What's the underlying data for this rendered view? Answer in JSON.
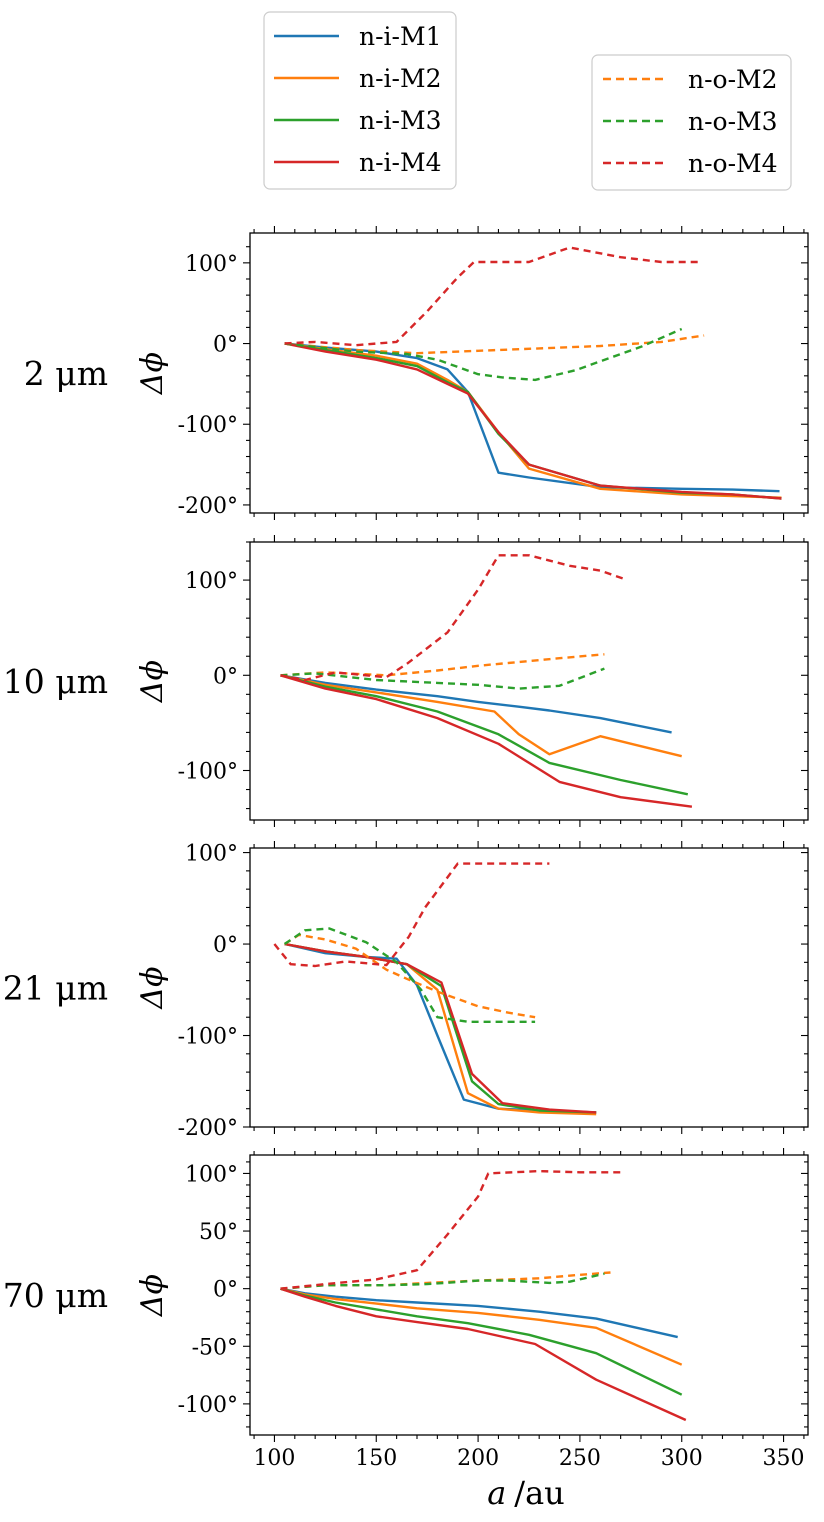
{
  "chart_data": {
    "type": "line",
    "xlabel_var": "a",
    "xlabel_unit": "/au",
    "x_ticks": [
      "100",
      "150",
      "200",
      "250",
      "300",
      "350"
    ],
    "xlim": [
      88,
      362
    ],
    "legend_left": [
      "n-i-M1",
      "n-i-M2",
      "n-i-M3",
      "n-i-M4"
    ],
    "legend_right": [
      "n-o-M2",
      "n-o-M3",
      "n-o-M4"
    ],
    "colors": {
      "M1": "#1f77b4",
      "M2": "#ff7f0e",
      "M3": "#2ca02c",
      "M4": "#d62728"
    },
    "ylabel": "Δϕ",
    "panels": [
      {
        "label": "2 μm",
        "ylim": [
          -210,
          137
        ],
        "yticks": [
          {
            "v": 100,
            "t": "100°"
          },
          {
            "v": 0,
            "t": "0°"
          },
          {
            "v": -100,
            "t": "-100°"
          },
          {
            "v": -200,
            "t": "-200°"
          }
        ],
        "series": [
          {
            "name": "n-i-M1",
            "c": "M1",
            "dash": false,
            "x": [
              105,
              125,
              150,
              170,
              185,
              195,
              210,
              225,
              260,
              300,
              325,
              348
            ],
            "y": [
              0,
              -5,
              -10,
              -18,
              -32,
              -60,
              -160,
              -166,
              -178,
              -180,
              -181,
              -183
            ]
          },
          {
            "name": "n-i-M2",
            "c": "M2",
            "dash": false,
            "x": [
              105,
              125,
              150,
              170,
              185,
              195,
              210,
              225,
              260,
              300,
              325,
              349
            ],
            "y": [
              0,
              -7,
              -15,
              -25,
              -45,
              -60,
              -110,
              -155,
              -180,
              -187,
              -189,
              -191
            ]
          },
          {
            "name": "n-i-M3",
            "c": "M3",
            "dash": false,
            "x": [
              105,
              125,
              150,
              170,
              185,
              195,
              210,
              225,
              260,
              300,
              325,
              349
            ],
            "y": [
              0,
              -8,
              -18,
              -28,
              -48,
              -60,
              -112,
              -150,
              -176,
              -185,
              -187,
              -192
            ]
          },
          {
            "name": "n-i-M4",
            "c": "M4",
            "dash": false,
            "x": [
              105,
              125,
              150,
              170,
              185,
              195,
              210,
              225,
              260,
              300,
              325,
              349
            ],
            "y": [
              0,
              -10,
              -20,
              -32,
              -50,
              -62,
              -110,
              -150,
              -176,
              -184,
              -187,
              -192
            ]
          },
          {
            "name": "n-o-M2",
            "c": "M2",
            "dash": true,
            "x": [
              105,
              140,
              170,
              200,
              230,
              260,
              290,
              311
            ],
            "y": [
              0,
              -8,
              -12,
              -9,
              -6,
              -3,
              2,
              10
            ]
          },
          {
            "name": "n-o-M3",
            "c": "M3",
            "dash": true,
            "x": [
              105,
              140,
              165,
              180,
              200,
              212,
              228,
              248,
              260,
              280,
              300
            ],
            "y": [
              0,
              -10,
              -13,
              -20,
              -38,
              -42,
              -45,
              -33,
              -22,
              -4,
              18
            ]
          },
          {
            "name": "n-o-M4",
            "c": "M4",
            "dash": true,
            "x": [
              105,
              120,
              140,
              160,
              175,
              190,
              198,
              210,
              225,
              245,
              270,
              290,
              310
            ],
            "y": [
              0,
              2,
              -2,
              2,
              40,
              82,
              101,
              101,
              101,
              119,
              107,
              101,
              101
            ]
          }
        ]
      },
      {
        "label": "10 μm",
        "ylim": [
          -152,
          140
        ],
        "yticks": [
          {
            "v": 100,
            "t": "100°"
          },
          {
            "v": 0,
            "t": "0°"
          },
          {
            "v": -100,
            "t": "-100°"
          }
        ],
        "series": [
          {
            "name": "n-i-M1",
            "c": "M1",
            "dash": false,
            "x": [
              103,
              125,
              150,
              180,
              200,
              220,
              235,
              260,
              295
            ],
            "y": [
              0,
              -8,
              -15,
              -22,
              -28,
              -33,
              -37,
              -45,
              -60
            ]
          },
          {
            "name": "n-i-M2",
            "c": "M2",
            "dash": false,
            "x": [
              103,
              125,
              150,
              180,
              208,
              220,
              235,
              260,
              300
            ],
            "y": [
              0,
              -10,
              -18,
              -28,
              -38,
              -62,
              -83,
              -64,
              -85
            ]
          },
          {
            "name": "n-i-M3",
            "c": "M3",
            "dash": false,
            "x": [
              103,
              125,
              150,
              180,
              210,
              235,
              270,
              303
            ],
            "y": [
              0,
              -12,
              -22,
              -38,
              -62,
              -92,
              -110,
              -125
            ]
          },
          {
            "name": "n-i-M4",
            "c": "M4",
            "dash": false,
            "x": [
              103,
              125,
              150,
              180,
              210,
              240,
              270,
              305
            ],
            "y": [
              0,
              -14,
              -25,
              -45,
              -72,
              -112,
              -128,
              -138
            ]
          },
          {
            "name": "n-o-M2",
            "c": "M2",
            "dash": true,
            "x": [
              103,
              125,
              155,
              180,
              200,
              220,
              240,
              262
            ],
            "y": [
              0,
              3,
              0,
              5,
              10,
              14,
              18,
              22
            ]
          },
          {
            "name": "n-o-M3",
            "c": "M3",
            "dash": true,
            "x": [
              103,
              120,
              150,
              180,
              200,
              220,
              240,
              262
            ],
            "y": [
              0,
              2,
              -5,
              -8,
              -10,
              -14,
              -11,
              7
            ]
          },
          {
            "name": "n-o-M4",
            "c": "M4",
            "dash": true,
            "x": [
              103,
              115,
              130,
              155,
              165,
              185,
              200,
              210,
              225,
              245,
              260,
              272
            ],
            "y": [
              0,
              -5,
              3,
              -2,
              12,
              45,
              90,
              126,
              126,
              115,
              110,
              101
            ]
          }
        ]
      },
      {
        "label": "21 μm",
        "ylim": [
          -200,
          105
        ],
        "yticks": [
          {
            "v": 100,
            "t": "100°"
          },
          {
            "v": 0,
            "t": "0°"
          },
          {
            "v": -100,
            "t": "-100°"
          },
          {
            "v": -200,
            "t": "-200°"
          }
        ],
        "series": [
          {
            "name": "n-i-M1",
            "c": "M1",
            "dash": false,
            "x": [
              105,
              125,
              145,
              160,
              170,
              180,
              193,
              210,
              230,
              258
            ],
            "y": [
              0,
              -10,
              -14,
              -16,
              -45,
              -100,
              -170,
              -180,
              -182,
              -184
            ]
          },
          {
            "name": "n-i-M2",
            "c": "M2",
            "dash": false,
            "x": [
              105,
              125,
              145,
              165,
              180,
              195,
              210,
              230,
              258
            ],
            "y": [
              0,
              -8,
              -14,
              -22,
              -50,
              -163,
              -180,
              -184,
              -186
            ]
          },
          {
            "name": "n-i-M3",
            "c": "M3",
            "dash": false,
            "x": [
              105,
              125,
              145,
              165,
              182,
              197,
              210,
              230,
              258
            ],
            "y": [
              0,
              -8,
              -14,
              -22,
              -46,
              -150,
              -175,
              -182,
              -184
            ]
          },
          {
            "name": "n-i-M4",
            "c": "M4",
            "dash": false,
            "x": [
              105,
              125,
              145,
              165,
              182,
              197,
              212,
              235,
              258
            ],
            "y": [
              0,
              -8,
              -14,
              -22,
              -42,
              -142,
              -174,
              -181,
              -184
            ]
          },
          {
            "name": "n-o-M2",
            "c": "M2",
            "dash": true,
            "x": [
              105,
              112,
              125,
              140,
              155,
              165,
              180,
              200,
              215,
              228
            ],
            "y": [
              0,
              10,
              5,
              -5,
              -28,
              -38,
              -52,
              -68,
              -75,
              -80
            ]
          },
          {
            "name": "n-o-M3",
            "c": "M3",
            "dash": true,
            "x": [
              105,
              115,
              127,
              145,
              160,
              172,
              180,
              195,
              210,
              228
            ],
            "y": [
              0,
              15,
              17,
              2,
              -20,
              -50,
              -80,
              -85,
              -85,
              -85
            ]
          },
          {
            "name": "n-o-M4",
            "c": "M4",
            "dash": true,
            "x": [
              100,
              108,
              120,
              135,
              155,
              166,
              174,
              190,
              210,
              235
            ],
            "y": [
              0,
              -22,
              -24,
              -19,
              -23,
              8,
              40,
              88,
              88,
              88
            ]
          }
        ]
      },
      {
        "label": "70 μm",
        "ylim": [
          -127,
          116
        ],
        "yticks": [
          {
            "v": 100,
            "t": "100°"
          },
          {
            "v": 50,
            "t": "50°"
          },
          {
            "v": 0,
            "t": "0°"
          },
          {
            "v": -50,
            "t": "-50°"
          },
          {
            "v": -100,
            "t": "-100°"
          }
        ],
        "series": [
          {
            "name": "n-i-M1",
            "c": "M1",
            "dash": false,
            "x": [
              103,
              115,
              130,
              150,
              170,
              200,
              230,
              258,
              298
            ],
            "y": [
              0,
              -4,
              -7,
              -10,
              -12,
              -15,
              -20,
              -26,
              -42
            ]
          },
          {
            "name": "n-i-M2",
            "c": "M2",
            "dash": false,
            "x": [
              103,
              115,
              130,
              150,
              170,
              200,
              230,
              258,
              300
            ],
            "y": [
              0,
              -5,
              -9,
              -13,
              -17,
              -21,
              -27,
              -34,
              -66
            ]
          },
          {
            "name": "n-i-M3",
            "c": "M3",
            "dash": false,
            "x": [
              103,
              115,
              130,
              150,
              170,
              195,
              225,
              258,
              300
            ],
            "y": [
              0,
              -6,
              -12,
              -18,
              -24,
              -30,
              -40,
              -56,
              -92
            ]
          },
          {
            "name": "n-i-M4",
            "c": "M4",
            "dash": false,
            "x": [
              103,
              115,
              130,
              150,
              170,
              195,
              228,
              258,
              302
            ],
            "y": [
              0,
              -7,
              -15,
              -24,
              -29,
              -35,
              -48,
              -79,
              -114
            ]
          },
          {
            "name": "n-o-M2",
            "c": "M2",
            "dash": true,
            "x": [
              103,
              125,
              155,
              175,
              200,
              230,
              250,
              265
            ],
            "y": [
              0,
              3,
              3,
              5,
              7,
              9,
              12,
              14
            ]
          },
          {
            "name": "n-o-M3",
            "c": "M3",
            "dash": true,
            "x": [
              103,
              125,
              155,
              175,
              200,
              215,
              235,
              245,
              262
            ],
            "y": [
              0,
              3,
              3,
              4,
              7,
              7,
              5,
              6,
              13
            ]
          },
          {
            "name": "n-o-M4",
            "c": "M4",
            "dash": true,
            "x": [
              103,
              125,
              150,
              170,
              185,
              200,
              205,
              230,
              250,
              272
            ],
            "y": [
              0,
              4,
              8,
              16,
              47,
              80,
              100,
              102,
              101,
              101
            ]
          }
        ]
      }
    ]
  }
}
